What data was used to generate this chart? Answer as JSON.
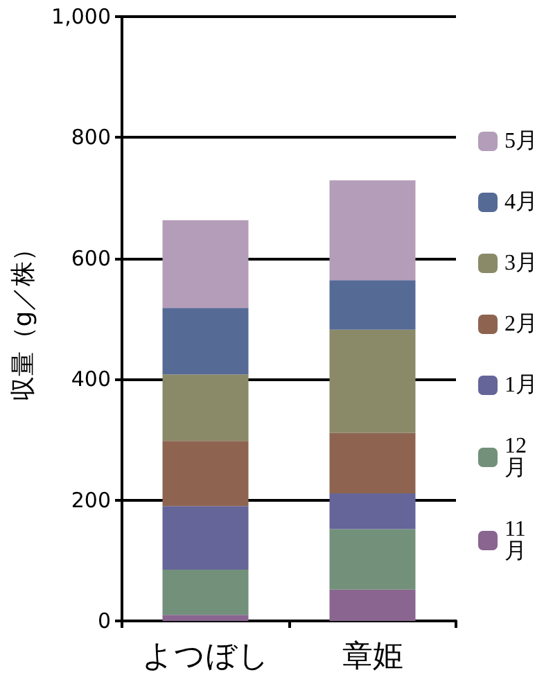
{
  "chart_data": {
    "type": "bar",
    "stacked": true,
    "ylabel": "収量（g／株）",
    "categories": [
      "よつぼし",
      "章姫"
    ],
    "series": [
      {
        "name": "11月",
        "color": "#8a6590",
        "values": [
          10,
          52
        ]
      },
      {
        "name": "12月",
        "color": "#72907a",
        "values": [
          75,
          100
        ]
      },
      {
        "name": "1月",
        "color": "#65659a",
        "values": [
          105,
          59
        ]
      },
      {
        "name": "2月",
        "color": "#8e6450",
        "values": [
          108,
          100
        ]
      },
      {
        "name": "3月",
        "color": "#8a8a68",
        "values": [
          110,
          171
        ]
      },
      {
        "name": "4月",
        "color": "#566a96",
        "values": [
          110,
          82
        ]
      },
      {
        "name": "5月",
        "color": "#b49db8",
        "values": [
          145,
          165
        ]
      }
    ],
    "ylim": [
      0,
      1000
    ],
    "yticks": [
      0,
      200,
      400,
      600,
      800,
      {
        "value": 1000,
        "label": "1,000"
      }
    ],
    "grid": "y",
    "legend": "right"
  }
}
